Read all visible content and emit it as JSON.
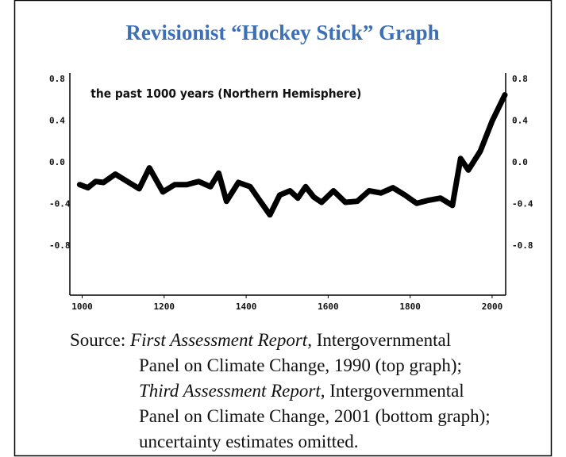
{
  "chart_data": {
    "type": "line",
    "title": "Revisionist “Hockey Stick” Graph",
    "annotation": "the past 1000 years (Northern Hemisphere)",
    "x": [
      994,
      1014,
      1033,
      1052,
      1081,
      1110,
      1139,
      1164,
      1197,
      1226,
      1255,
      1284,
      1313,
      1333,
      1352,
      1381,
      1410,
      1429,
      1458,
      1482,
      1507,
      1526,
      1545,
      1565,
      1584,
      1613,
      1642,
      1671,
      1700,
      1729,
      1758,
      1787,
      1816,
      1845,
      1874,
      1903,
      1923,
      1942,
      1971,
      2000,
      2031
    ],
    "series": [
      {
        "color": "#000000",
        "values": [
          -0.21,
          -0.24,
          -0.18,
          -0.19,
          -0.11,
          -0.18,
          -0.25,
          -0.05,
          -0.28,
          -0.21,
          -0.21,
          -0.18,
          -0.23,
          -0.1,
          -0.37,
          -0.19,
          -0.23,
          -0.34,
          -0.5,
          -0.31,
          -0.27,
          -0.34,
          -0.23,
          -0.33,
          -0.38,
          -0.27,
          -0.38,
          -0.37,
          -0.27,
          -0.29,
          -0.24,
          -0.31,
          -0.39,
          -0.36,
          -0.34,
          -0.41,
          0.04,
          -0.07,
          0.11,
          0.4,
          0.65
        ]
      }
    ],
    "xlim": [
      970,
      2033
    ],
    "xticks": [
      1000,
      1200,
      1400,
      1600,
      1800,
      2000
    ],
    "ylim": [
      -1.27,
      0.86
    ],
    "yticks": [
      0.8,
      0.4,
      {
        "value": 0,
        "label": "0.0"
      },
      -0.4,
      -0.8
    ],
    "y2lim": [
      -1.27,
      0.86
    ],
    "y2ticks": [
      0.8,
      0.4,
      {
        "value": 0,
        "label": "0.0"
      },
      -0.4,
      -0.8
    ]
  },
  "caption": {
    "lines": [
      [
        {
          "text": "Source: "
        },
        {
          "text": "First Assessment Report,",
          "italic": true
        },
        {
          "text": " Intergovernmental"
        }
      ],
      [
        {
          "text": "Panel on Climate Change, 1990 (top graph);"
        }
      ],
      [
        {
          "text": "Third Assessment Report,",
          "italic": true
        },
        {
          "text": " Intergovernmental"
        }
      ],
      [
        {
          "text": "Panel on Climate Change, 2001 (bottom graph);"
        }
      ],
      [
        {
          "text": "uncertainty estimates omitted."
        }
      ]
    ]
  }
}
